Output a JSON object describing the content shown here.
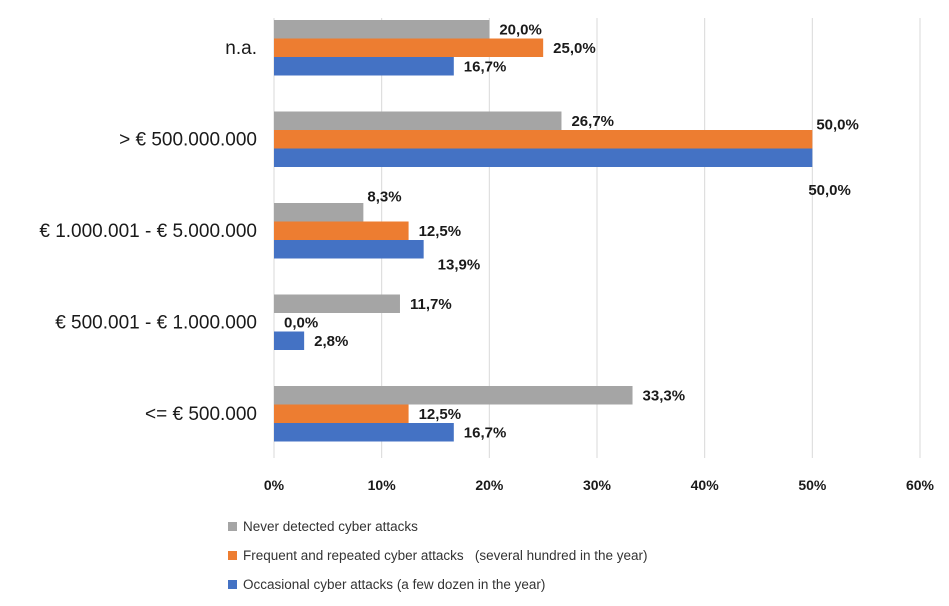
{
  "chart_data": {
    "type": "bar",
    "orientation": "horizontal",
    "categories": [
      "n.a.",
      "> € 500.000.000",
      "€ 1.000.001 - € 5.000.000",
      "€ 500.001 - € 1.000.000",
      "<= € 500.000"
    ],
    "series": [
      {
        "name": "Never detected cyber attacks",
        "color": "#a5a5a5",
        "values": [
          20.0,
          26.7,
          8.3,
          11.7,
          33.3
        ],
        "labels": [
          "20,0%",
          "26,7%",
          "8,3%",
          "11,7%",
          "33,3%"
        ]
      },
      {
        "name": "Frequent and repeated cyber attacks   (several hundred in the year)",
        "color": "#ed7d31",
        "values": [
          25.0,
          50.0,
          12.5,
          0.0,
          12.5
        ],
        "labels": [
          "25,0%",
          "50,0%",
          "12,5%",
          "0,0%",
          "12,5%"
        ]
      },
      {
        "name": "Occasional cyber attacks (a few dozen in the year)",
        "color": "#4472c4",
        "values": [
          16.7,
          50.0,
          13.9,
          2.8,
          16.7
        ],
        "labels": [
          "16,7%",
          "50,0%",
          "13,9%",
          "2,8%",
          "16,7%"
        ]
      }
    ],
    "xlim": [
      0,
      60
    ],
    "ticks": [
      "0%",
      "10%",
      "20%",
      "30%",
      "40%",
      "50%",
      "60%"
    ],
    "grid": true,
    "legend_position": "bottom"
  }
}
